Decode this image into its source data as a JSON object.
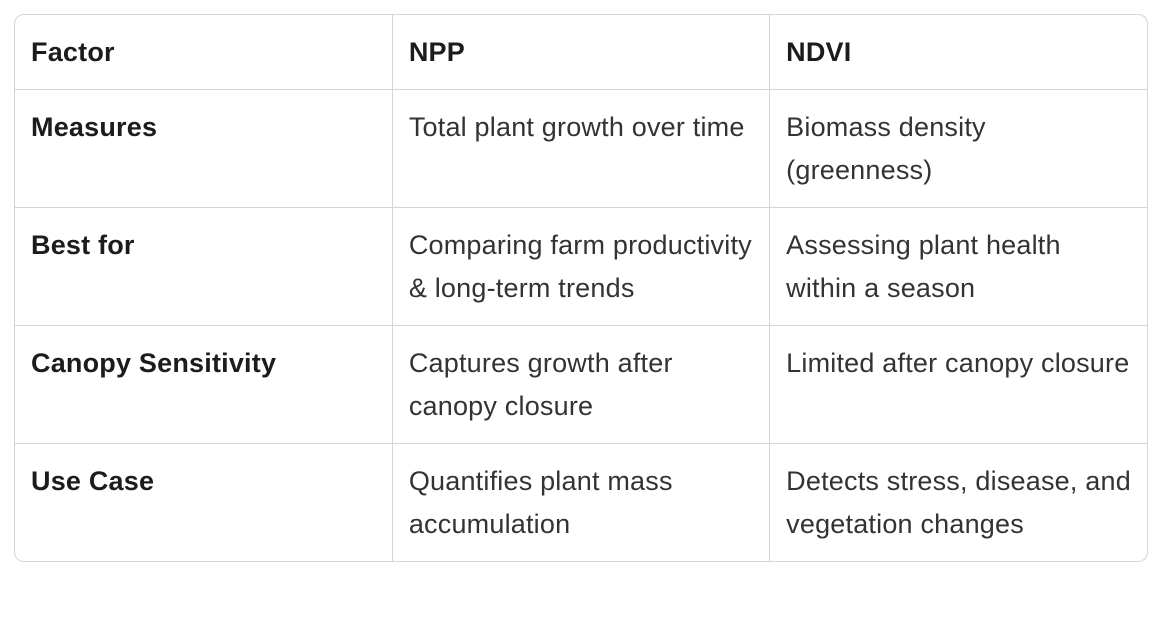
{
  "chart_data": {
    "type": "table",
    "columns": [
      "Factor",
      "NPP",
      "NDVI"
    ],
    "rows": [
      [
        "Measures",
        "Total plant growth over time",
        "Biomass density (greenness)"
      ],
      [
        "Best for",
        "Comparing farm productivity & long-term trends",
        "Assessing plant health within a season"
      ],
      [
        "Canopy Sensitivity",
        "Captures growth after canopy closure",
        "Limited after canopy closure"
      ],
      [
        "Use Case",
        "Quantifies plant mass accumulation",
        "Detects stress, disease, and vegetation changes"
      ]
    ]
  },
  "colors": {
    "border": "#d5d5d5",
    "header_text": "#1c1c1c",
    "body_text": "#333333",
    "background": "#ffffff"
  }
}
